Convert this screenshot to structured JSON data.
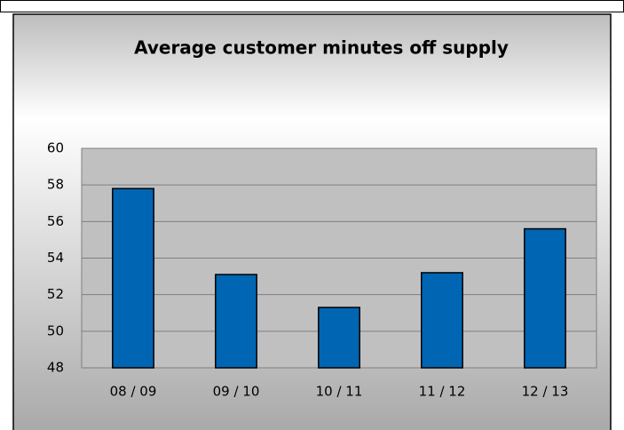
{
  "chart_data": {
    "type": "bar",
    "title": "Average customer minutes off supply",
    "categories": [
      "08 / 09",
      "09 / 10",
      "10 / 11",
      "11 / 12",
      "12 / 13"
    ],
    "values": [
      57.8,
      53.1,
      51.3,
      53.2,
      55.6
    ],
    "color": "#0066b3",
    "ylim": [
      48,
      60
    ],
    "yticks": [
      48,
      50,
      52,
      54,
      56,
      58,
      60
    ],
    "grid": true
  }
}
